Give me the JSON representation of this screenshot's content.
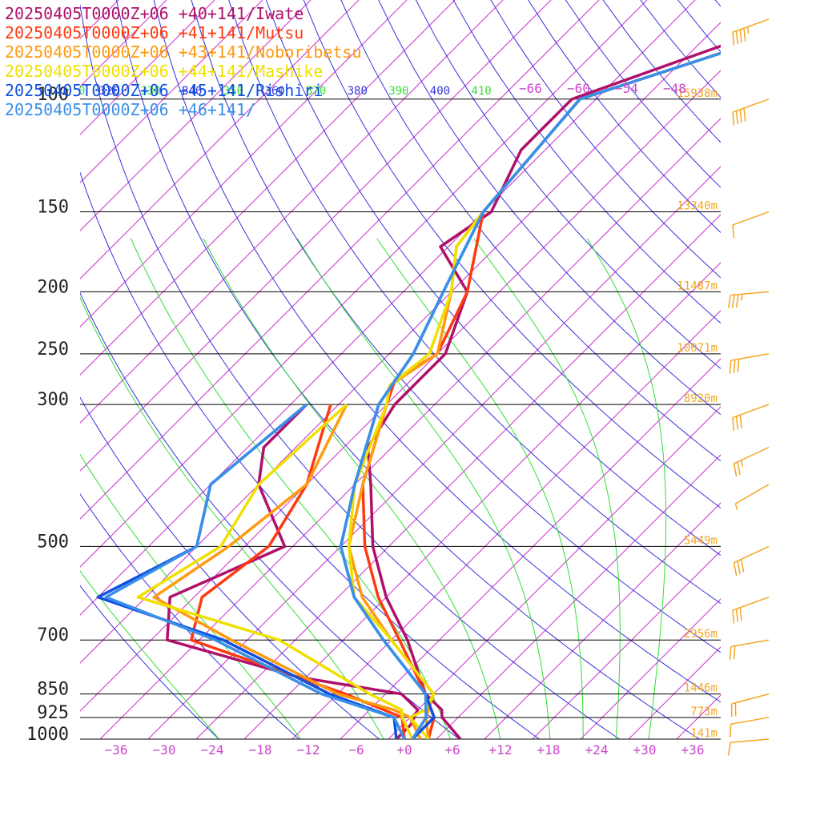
{
  "chart_data": {
    "type": "line",
    "title": "",
    "xlabel": "",
    "ylabel": "",
    "xlim": [
      -40,
      40
    ],
    "ylim_hpa": [
      1000,
      70
    ],
    "x_ticks": [
      -36,
      -30,
      -24,
      -18,
      -12,
      -6,
      0,
      6,
      12,
      18,
      24,
      30,
      36
    ],
    "x_tick_labels": [
      "−36",
      "−30",
      "−24",
      "−18",
      "−12",
      "−6",
      "+0",
      "+6",
      "+12",
      "+18",
      "+24",
      "+30",
      "+36"
    ],
    "p_levels": [
      {
        "p": 100,
        "label": "100",
        "height": "15938m"
      },
      {
        "p": 150,
        "label": "150",
        "height": "13340m"
      },
      {
        "p": 200,
        "label": "200",
        "height": "11487m"
      },
      {
        "p": 250,
        "label": "250",
        "height": "10071m"
      },
      {
        "p": 300,
        "label": "300",
        "height": "8920m"
      },
      {
        "p": 500,
        "label": "500",
        "height": "5449m"
      },
      {
        "p": 700,
        "label": "700",
        "height": "2956m"
      },
      {
        "p": 850,
        "label": "850",
        "height": "1446m"
      },
      {
        "p": 925,
        "label": "925",
        "height": "773m"
      },
      {
        "p": 1000,
        "label": "1000",
        "height": "141m"
      }
    ],
    "theta_labels": [
      "0",
      "320",
      "330",
      "340",
      "350",
      "360",
      "370",
      "380",
      "390",
      "400",
      "410"
    ],
    "upper_iso_labels": [
      "−66",
      "−60",
      "−54",
      "−48"
    ],
    "grid": true,
    "legend_placement": "top-left",
    "series": [
      {
        "name": "20250405T0000Z+06 +40+141/Iwate",
        "color": "#b0106a",
        "points": [
          [
            70,
            -41
          ],
          [
            75,
            -41
          ],
          [
            100,
            -59
          ],
          [
            120,
            -59
          ],
          [
            150,
            -55
          ],
          [
            170,
            -57
          ],
          [
            200,
            -48
          ],
          [
            250,
            -43
          ],
          [
            300,
            -43
          ],
          [
            350,
            -41
          ],
          [
            400,
            -36
          ],
          [
            500,
            -28
          ],
          [
            600,
            -20
          ],
          [
            700,
            -12
          ],
          [
            850,
            -3
          ],
          [
            900,
            1
          ],
          [
            925,
            2
          ],
          [
            1000,
            7
          ]
        ],
        "dewpoint": [
          [
            300,
            -54
          ],
          [
            350,
            -54
          ],
          [
            400,
            -50
          ],
          [
            500,
            -39
          ],
          [
            600,
            -47
          ],
          [
            700,
            -42
          ],
          [
            800,
            -21
          ],
          [
            850,
            -6
          ],
          [
            900,
            -2
          ],
          [
            950,
            -1
          ],
          [
            1000,
            -1
          ]
        ]
      },
      {
        "name": "20250405T0000Z+06 +41+141/Mutsu",
        "color": "#ff3a10",
        "points": [
          [
            70,
            -41
          ],
          [
            80,
            -42
          ],
          [
            100,
            -58
          ],
          [
            150,
            -56
          ],
          [
            200,
            -48
          ],
          [
            250,
            -44
          ],
          [
            275,
            -46
          ],
          [
            300,
            -44
          ],
          [
            400,
            -37
          ],
          [
            500,
            -29
          ],
          [
            600,
            -21
          ],
          [
            700,
            -13
          ],
          [
            850,
            -3
          ],
          [
            925,
            1
          ],
          [
            1000,
            3
          ]
        ],
        "dewpoint": [
          [
            300,
            -51
          ],
          [
            400,
            -44
          ],
          [
            500,
            -41
          ],
          [
            600,
            -43
          ],
          [
            700,
            -39
          ],
          [
            850,
            -13
          ],
          [
            925,
            -3
          ],
          [
            1000,
            0
          ]
        ]
      },
      {
        "name": "20250405T0000Z+06 +43+141/Noboribetsu",
        "color": "#ff9a10",
        "points": [
          [
            70,
            -41
          ],
          [
            80,
            -42
          ],
          [
            100,
            -58
          ],
          [
            150,
            -56
          ],
          [
            170,
            -55
          ],
          [
            200,
            -50
          ],
          [
            250,
            -44
          ],
          [
            280,
            -46
          ],
          [
            300,
            -44
          ],
          [
            400,
            -37
          ],
          [
            500,
            -31
          ],
          [
            600,
            -23
          ],
          [
            700,
            -14
          ],
          [
            850,
            -2
          ],
          [
            925,
            0
          ],
          [
            1000,
            3
          ]
        ],
        "dewpoint": [
          [
            300,
            -49
          ],
          [
            400,
            -44
          ],
          [
            500,
            -46
          ],
          [
            600,
            -49
          ],
          [
            700,
            -34
          ],
          [
            850,
            -14
          ],
          [
            900,
            -5
          ],
          [
            925,
            -2
          ],
          [
            1000,
            2
          ]
        ]
      },
      {
        "name": "20250405T0000Z+06 +44+141/Mashike",
        "color": "#f0e000",
        "points": [
          [
            70,
            -41
          ],
          [
            80,
            -42
          ],
          [
            100,
            -58
          ],
          [
            150,
            -56
          ],
          [
            170,
            -55
          ],
          [
            200,
            -50
          ],
          [
            250,
            -45
          ],
          [
            280,
            -46
          ],
          [
            300,
            -44
          ],
          [
            400,
            -38
          ],
          [
            500,
            -31
          ],
          [
            600,
            -24
          ],
          [
            700,
            -14
          ],
          [
            850,
            -2
          ],
          [
            900,
            -1
          ],
          [
            925,
            -2
          ],
          [
            1000,
            3
          ]
        ],
        "dewpoint": [
          [
            300,
            -49
          ],
          [
            400,
            -50
          ],
          [
            500,
            -47
          ],
          [
            600,
            -51
          ],
          [
            700,
            -28
          ],
          [
            850,
            -10
          ],
          [
            900,
            -4
          ],
          [
            925,
            -3
          ],
          [
            1000,
            1
          ]
        ]
      },
      {
        "name": "20250405T0000Z+06 +45+141/Rishiri",
        "color": "#1050e0",
        "points": [
          [
            70,
            -41
          ],
          [
            80,
            -42
          ],
          [
            100,
            -58
          ],
          [
            150,
            -56
          ],
          [
            200,
            -51
          ],
          [
            250,
            -47
          ],
          [
            300,
            -45
          ],
          [
            400,
            -38
          ],
          [
            500,
            -32
          ],
          [
            600,
            -24
          ],
          [
            700,
            -15
          ],
          [
            850,
            -3
          ],
          [
            925,
            1
          ],
          [
            1000,
            1
          ]
        ],
        "dewpoint": [
          [
            300,
            -54
          ],
          [
            400,
            -56
          ],
          [
            500,
            -50
          ],
          [
            600,
            -56
          ],
          [
            700,
            -35
          ],
          [
            850,
            -15
          ],
          [
            925,
            -4
          ],
          [
            1000,
            -1
          ]
        ]
      },
      {
        "name": "20250405T0000Z+06 +46+141/",
        "color": "#3a90e8",
        "points": [
          [
            70,
            -41
          ],
          [
            80,
            -42
          ],
          [
            100,
            -58
          ],
          [
            150,
            -56
          ],
          [
            200,
            -51
          ],
          [
            250,
            -47
          ],
          [
            300,
            -45
          ],
          [
            400,
            -38
          ],
          [
            500,
            -32
          ],
          [
            600,
            -24
          ],
          [
            700,
            -15
          ],
          [
            850,
            -3
          ],
          [
            925,
            0
          ],
          [
            1000,
            1
          ]
        ],
        "dewpoint": [
          [
            300,
            -54
          ],
          [
            400,
            -56
          ],
          [
            500,
            -50
          ],
          [
            600,
            -55
          ],
          [
            700,
            -36
          ],
          [
            850,
            -16
          ],
          [
            925,
            -4
          ],
          [
            1000,
            0
          ]
        ]
      }
    ],
    "wind_barbs": [
      {
        "p": 75,
        "speed_kt": 45,
        "dir_deg": 290
      },
      {
        "p": 100,
        "speed_kt": 40,
        "dir_deg": 290
      },
      {
        "p": 150,
        "speed_kt": 10,
        "dir_deg": 290
      },
      {
        "p": 200,
        "speed_kt": 35,
        "dir_deg": 275
      },
      {
        "p": 250,
        "speed_kt": 30,
        "dir_deg": 280
      },
      {
        "p": 300,
        "speed_kt": 30,
        "dir_deg": 290
      },
      {
        "p": 350,
        "speed_kt": 25,
        "dir_deg": 295
      },
      {
        "p": 400,
        "speed_kt": 5,
        "dir_deg": 300
      },
      {
        "p": 500,
        "speed_kt": 30,
        "dir_deg": 295
      },
      {
        "p": 600,
        "speed_kt": 30,
        "dir_deg": 290
      },
      {
        "p": 700,
        "speed_kt": 20,
        "dir_deg": 280
      },
      {
        "p": 850,
        "speed_kt": 20,
        "dir_deg": 285
      },
      {
        "p": 925,
        "speed_kt": 10,
        "dir_deg": 280
      },
      {
        "p": 1000,
        "speed_kt": 10,
        "dir_deg": 275
      }
    ]
  },
  "colors": {
    "isotherm": "#cc33cc",
    "dry_adiabat": "#3333dd",
    "moist_adiabat": "#33dd33",
    "isobar": "#000000",
    "barb": "#f5a623"
  }
}
